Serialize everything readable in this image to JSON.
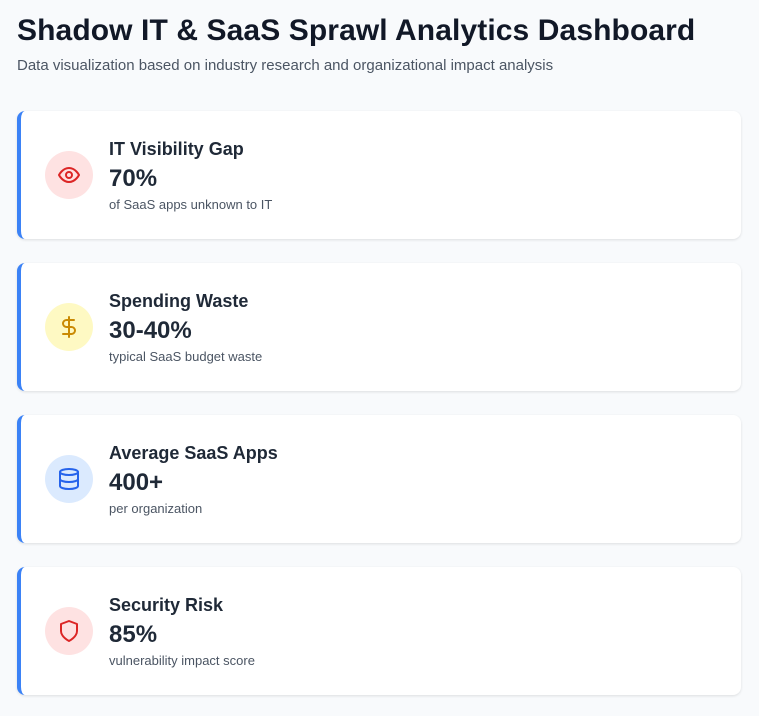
{
  "header": {
    "title": "Shadow IT & SaaS Sprawl Analytics Dashboard",
    "subtitle": "Data visualization based on industry research and organizational impact analysis"
  },
  "colors": {
    "accent": "#3b82f6",
    "red_bg": "#fee2e2",
    "red_fg": "#dc2626",
    "yellow_bg": "#fef9c3",
    "yellow_fg": "#ca8a04",
    "blue_bg": "#dbeafe",
    "blue_fg": "#2563eb"
  },
  "cards": [
    {
      "icon": "eye-icon",
      "label": "IT Visibility Gap",
      "value": "70%",
      "description": "of SaaS apps unknown to IT"
    },
    {
      "icon": "dollar-icon",
      "label": "Spending Waste",
      "value": "30-40%",
      "description": "typical SaaS budget waste"
    },
    {
      "icon": "database-icon",
      "label": "Average SaaS Apps",
      "value": "400+",
      "description": "per organization"
    },
    {
      "icon": "shield-icon",
      "label": "Security Risk",
      "value": "85%",
      "description": "vulnerability impact score"
    }
  ]
}
